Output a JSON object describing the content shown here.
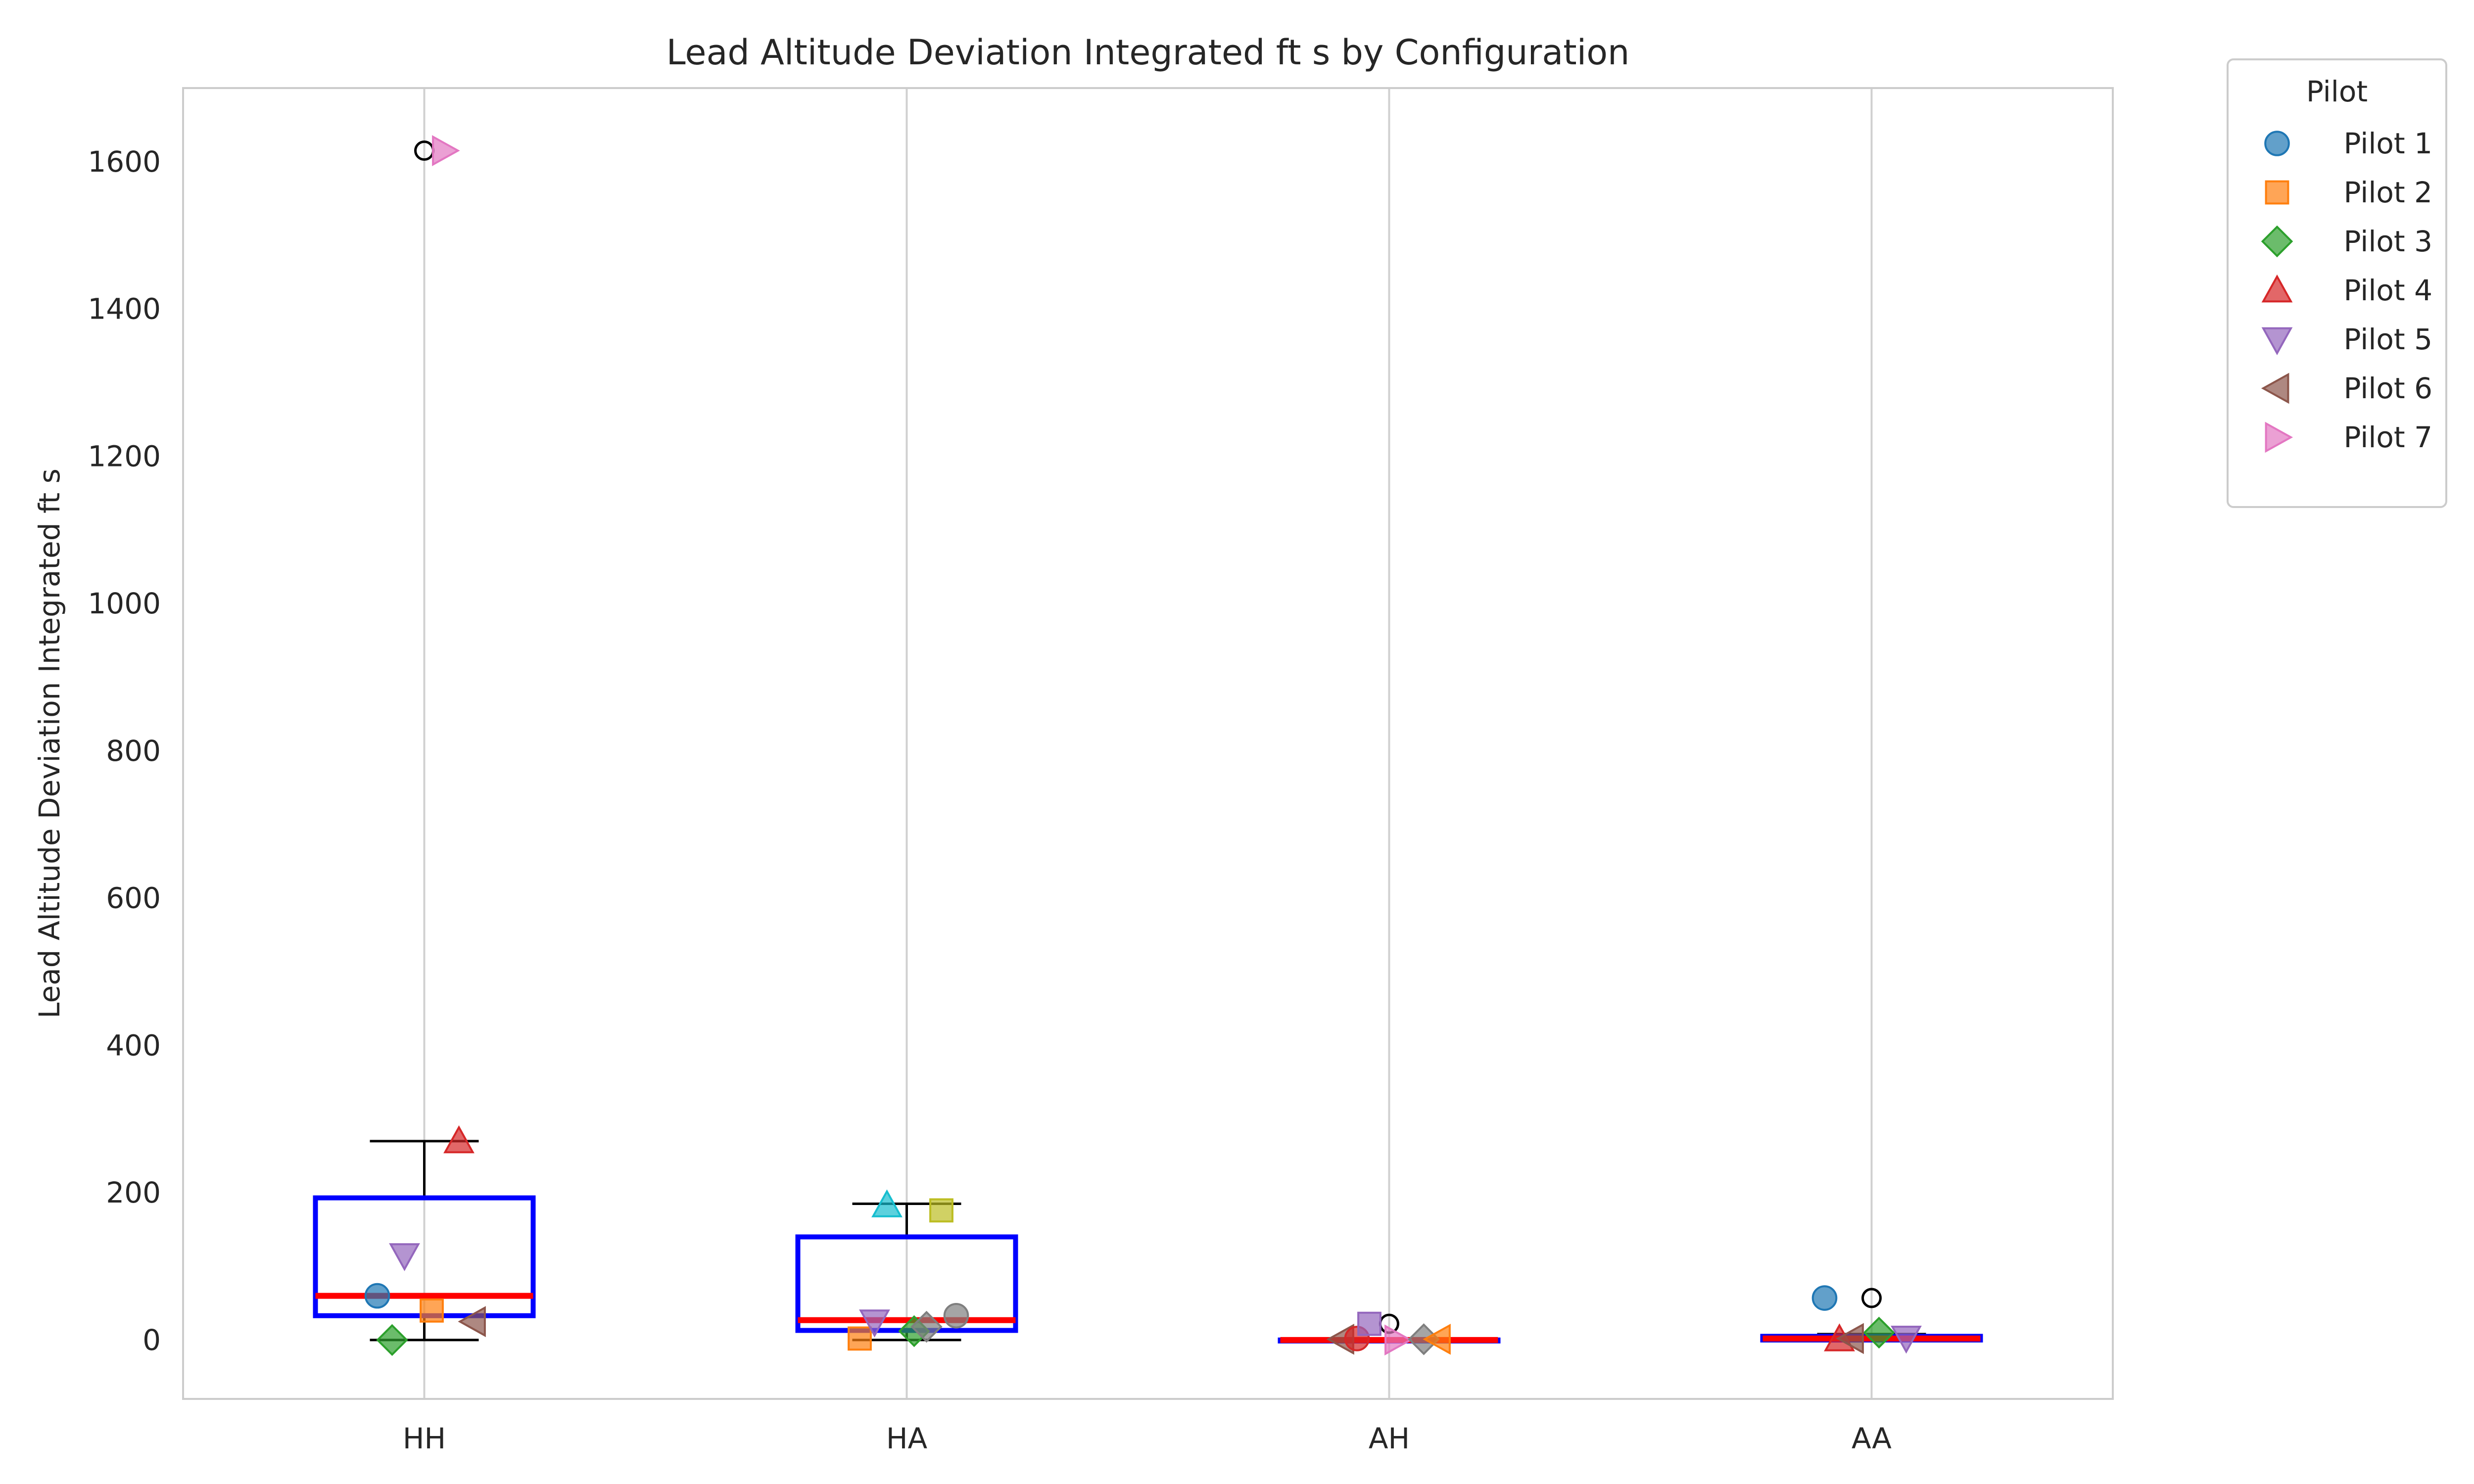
{
  "chart_data": {
    "type": "box",
    "title": "Lead Altitude Deviation Integrated ft s by Configuration",
    "xlabel": "",
    "ylabel": "Lead Altitude Deviation Integrated ft s",
    "categories": [
      "HH",
      "HA",
      "AH",
      "AA"
    ],
    "ylim": [
      -80,
      1700
    ],
    "yticks": [
      0,
      200,
      400,
      600,
      800,
      1000,
      1200,
      1400,
      1600
    ],
    "grid": "vertical",
    "legend": {
      "title": "Pilot",
      "placement": "outside-right"
    },
    "box_color": "#0000ff",
    "median_color": "#ff0000",
    "boxes": [
      {
        "category": "HH",
        "q1": 33,
        "median": 60,
        "q3": 193,
        "whisker_low": 0,
        "whisker_high": 270,
        "outliers": [
          1615
        ]
      },
      {
        "category": "HA",
        "q1": 13,
        "median": 27,
        "q3": 140,
        "whisker_low": 0,
        "whisker_high": 185,
        "outliers": []
      },
      {
        "category": "AH",
        "q1": 0,
        "median": 0,
        "q3": 0,
        "whisker_low": 0,
        "whisker_high": 0,
        "outliers": [
          22
        ]
      },
      {
        "category": "AA",
        "q1": 0,
        "median": 2,
        "q3": 5,
        "whisker_low": 0,
        "whisker_high": 8,
        "outliers": [
          57
        ]
      }
    ],
    "series": [
      {
        "name": "Pilot 1",
        "marker": "circle",
        "color": "#1f77b4",
        "points": [
          {
            "category": "HH",
            "y": 60
          },
          {
            "category": "AA",
            "y": 57
          }
        ]
      },
      {
        "name": "Pilot 2",
        "marker": "square",
        "color": "#ff7f0e",
        "points": [
          {
            "category": "HH",
            "y": 40
          },
          {
            "category": "HA",
            "y": 2
          }
        ]
      },
      {
        "name": "Pilot 3",
        "marker": "diamond",
        "color": "#2ca02c",
        "points": [
          {
            "category": "HH",
            "y": 0
          },
          {
            "category": "HA",
            "y": 12
          },
          {
            "category": "AA",
            "y": 10
          }
        ]
      },
      {
        "name": "Pilot 4",
        "marker": "triangle-up",
        "color": "#d62728",
        "points": [
          {
            "category": "HH",
            "y": 270
          },
          {
            "category": "AA",
            "y": 1
          }
        ]
      },
      {
        "name": "Pilot 5",
        "marker": "triangle-down",
        "color": "#9467bd",
        "points": [
          {
            "category": "HH",
            "y": 115
          },
          {
            "category": "HA",
            "y": 25
          },
          {
            "category": "AA",
            "y": 3
          }
        ]
      },
      {
        "name": "Pilot 6",
        "marker": "triangle-left",
        "color": "#8c564b",
        "points": [
          {
            "category": "HH",
            "y": 25
          },
          {
            "category": "AH",
            "y": 1
          },
          {
            "category": "AA",
            "y": 2
          }
        ]
      },
      {
        "name": "Pilot 7",
        "marker": "triangle-right",
        "color": "#e377c2",
        "points": [
          {
            "category": "HH",
            "y": 1615
          },
          {
            "category": "AH",
            "y": 0
          }
        ]
      }
    ],
    "extra_points": [
      {
        "category": "HA",
        "y": 176,
        "marker": "square",
        "color": "#bcbd22"
      },
      {
        "category": "HA",
        "y": 183,
        "marker": "triangle-up",
        "color": "#17becf"
      },
      {
        "category": "HA",
        "y": 33,
        "marker": "circle",
        "color": "#7f7f7f"
      },
      {
        "category": "HA",
        "y": 18,
        "marker": "diamond",
        "color": "#7f7f7f"
      },
      {
        "category": "AH",
        "y": 2,
        "marker": "circle",
        "color": "#d62728"
      },
      {
        "category": "AH",
        "y": 1,
        "marker": "diamond",
        "color": "#7f7f7f"
      },
      {
        "category": "AH",
        "y": 22,
        "marker": "square",
        "color": "#9467bd"
      },
      {
        "category": "AH",
        "y": 1,
        "marker": "triangle-left",
        "color": "#ff7f0e"
      }
    ]
  }
}
